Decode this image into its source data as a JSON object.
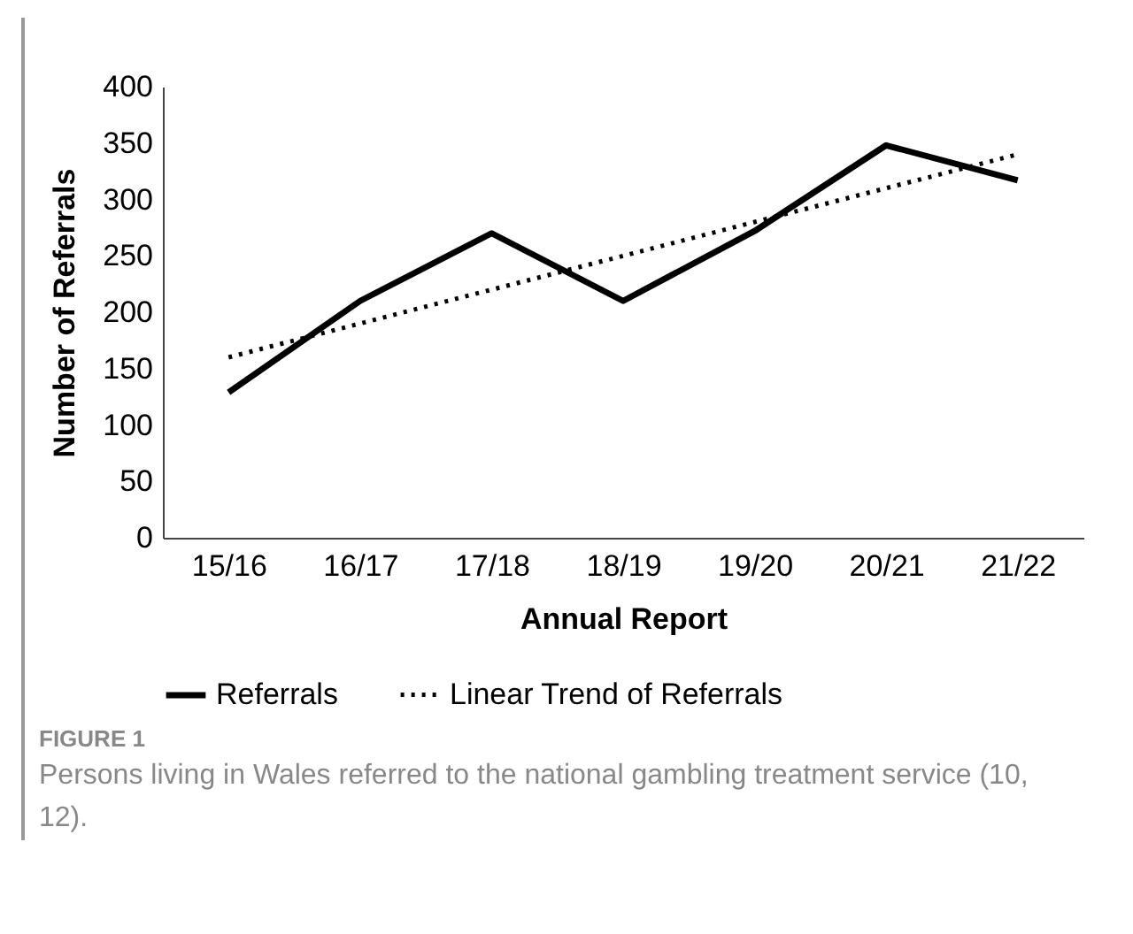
{
  "chart_data": {
    "type": "line",
    "xlabel": "Annual Report",
    "ylabel": "Number of Referrals",
    "categories": [
      "15/16",
      "16/17",
      "17/18",
      "18/19",
      "19/20",
      "20/21",
      "21/22"
    ],
    "series": [
      {
        "name": "Referrals",
        "color": "#000000",
        "line_style": "solid",
        "values": [
          129,
          210,
          270,
          210,
          272,
          348,
          317
        ]
      },
      {
        "name": "Linear Trend of Referrals",
        "color": "#000000",
        "line_style": "dotted",
        "values": [
          160,
          190,
          220,
          250,
          280,
          310,
          340
        ]
      }
    ],
    "ylim": [
      0,
      400
    ],
    "yticks": [
      0,
      50,
      100,
      150,
      200,
      250,
      300,
      350,
      400
    ],
    "grid": false,
    "legend": "bottom",
    "marker": "none",
    "annotations": [
      "FIGURE 1",
      "Persons living in Wales referred to the national gambling treatment service (10, 12)."
    ]
  }
}
